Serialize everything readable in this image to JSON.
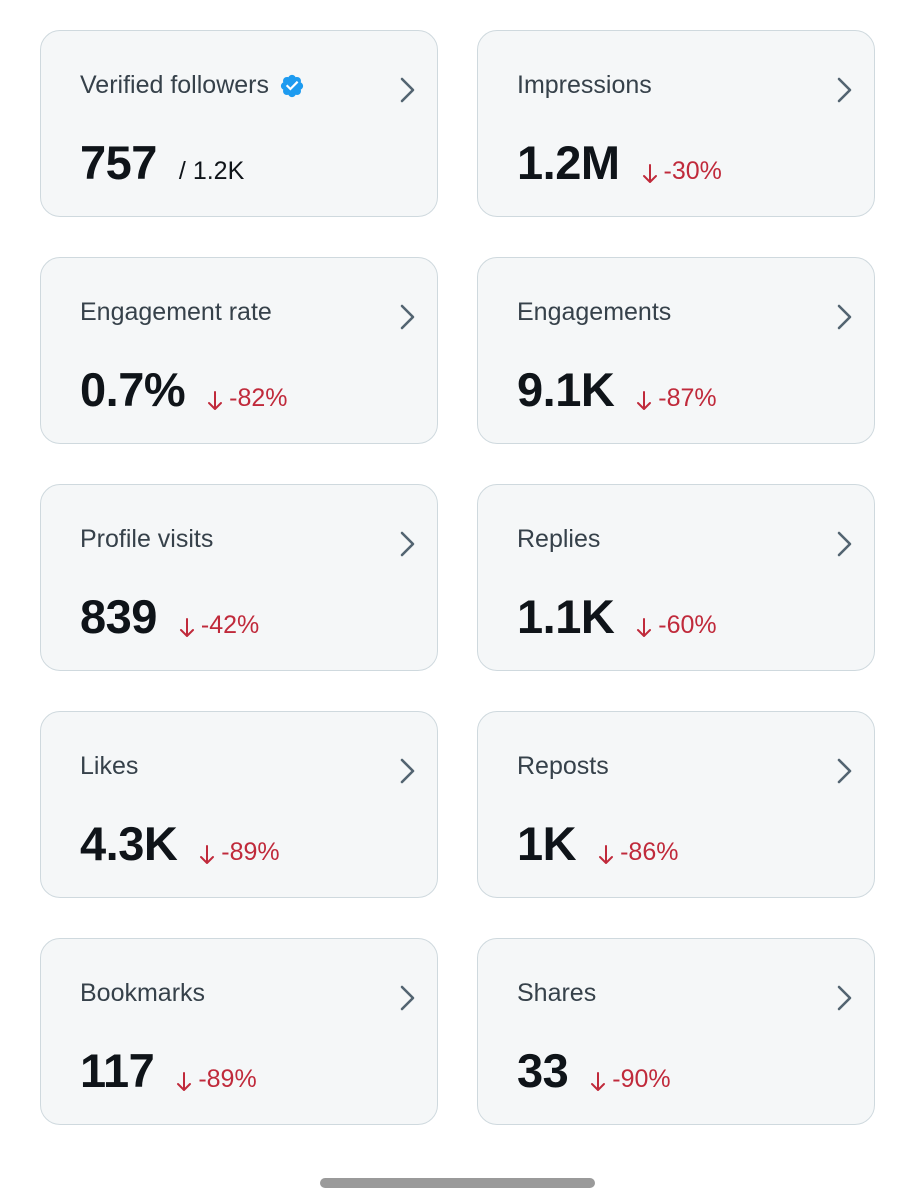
{
  "colors": {
    "card_bg": "#f5f7f8",
    "card_border": "#cfd9de",
    "label_text": "#36414a",
    "value_text": "#0f1419",
    "negative": "#c02a3b",
    "verified_blue": "#1d9bf0"
  },
  "cards": [
    {
      "label": "Verified followers",
      "icon": "verified-badge-icon",
      "value": "757",
      "total": "/ 1.2K"
    },
    {
      "label": "Impressions",
      "value": "1.2M",
      "change": "-30%",
      "direction": "down"
    },
    {
      "label": "Engagement rate",
      "value": "0.7%",
      "change": "-82%",
      "direction": "down"
    },
    {
      "label": "Engagements",
      "value": "9.1K",
      "change": "-87%",
      "direction": "down"
    },
    {
      "label": "Profile visits",
      "value": "839",
      "change": "-42%",
      "direction": "down"
    },
    {
      "label": "Replies",
      "value": "1.1K",
      "change": "-60%",
      "direction": "down"
    },
    {
      "label": "Likes",
      "value": "4.3K",
      "change": "-89%",
      "direction": "down"
    },
    {
      "label": "Reposts",
      "value": "1K",
      "change": "-86%",
      "direction": "down"
    },
    {
      "label": "Bookmarks",
      "value": "117",
      "change": "-89%",
      "direction": "down"
    },
    {
      "label": "Shares",
      "value": "33",
      "change": "-90%",
      "direction": "down"
    }
  ]
}
